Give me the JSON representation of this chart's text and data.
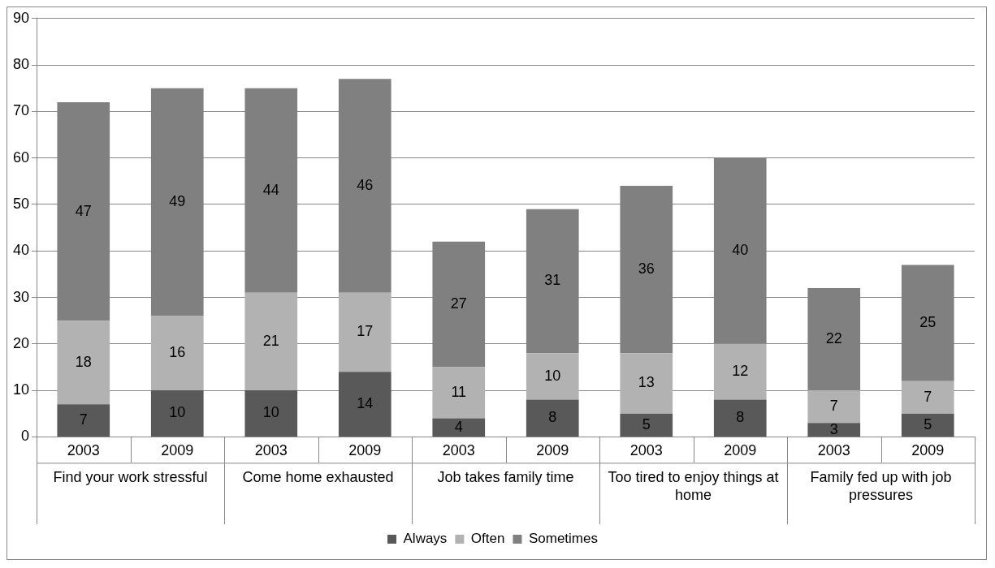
{
  "chart_data": {
    "type": "bar",
    "stacked": true,
    "categories": [
      "2003",
      "2009",
      "2003",
      "2009",
      "2003",
      "2009",
      "2003",
      "2009",
      "2003",
      "2009"
    ],
    "series": [
      {
        "name": "Always",
        "color": "#595959",
        "values": [
          7,
          10,
          10,
          14,
          4,
          8,
          5,
          8,
          3,
          5
        ]
      },
      {
        "name": "Often",
        "color": "#b2b2b2",
        "values": [
          18,
          16,
          21,
          17,
          11,
          10,
          13,
          12,
          7,
          7
        ]
      },
      {
        "name": "Sometimes",
        "color": "#808080",
        "values": [
          47,
          49,
          44,
          46,
          27,
          31,
          36,
          40,
          22,
          25
        ]
      }
    ],
    "annotations": [
      "Find your work stressful",
      "Come home exhausted",
      "Job takes family time",
      "Too tired to enjoy things at home",
      "Family fed up with job pressures"
    ],
    "ylim": [
      0,
      90
    ],
    "yticks": [
      0,
      10,
      20,
      30,
      40,
      50,
      60,
      70,
      80,
      90
    ],
    "grid": "y",
    "legend": "bottom",
    "data_labels": true
  }
}
